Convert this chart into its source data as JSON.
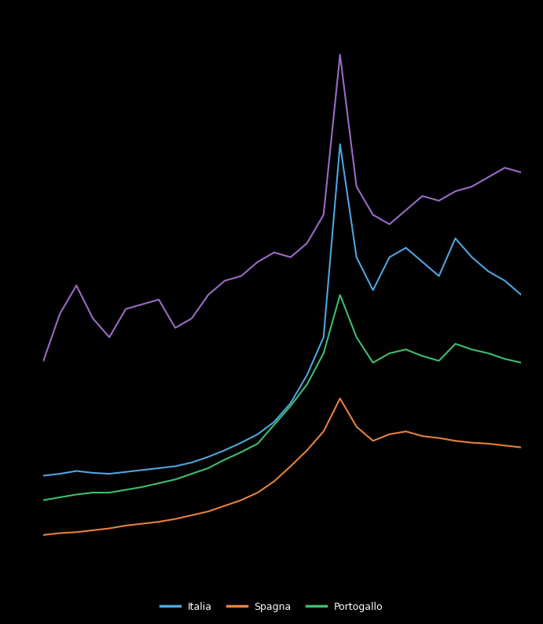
{
  "background_color": "#000000",
  "line_color_purple": "#9B6BC8",
  "line_color_blue": "#4DA6E0",
  "line_color_orange": "#E8813A",
  "line_color_green": "#3DBE6E",
  "purple_data": [
    230,
    280,
    310,
    275,
    255,
    285,
    290,
    295,
    265,
    275,
    300,
    315,
    320,
    335,
    345,
    340,
    355,
    385,
    555,
    415,
    385,
    375,
    390,
    405,
    400,
    410,
    415,
    425,
    435,
    430
  ],
  "blue_data": [
    108,
    110,
    113,
    111,
    110,
    112,
    114,
    116,
    118,
    122,
    128,
    135,
    143,
    152,
    165,
    185,
    215,
    255,
    460,
    340,
    305,
    340,
    350,
    335,
    320,
    360,
    340,
    325,
    315,
    300
  ],
  "green_data": [
    82,
    85,
    88,
    90,
    90,
    93,
    96,
    100,
    104,
    110,
    116,
    125,
    133,
    142,
    162,
    182,
    205,
    238,
    300,
    255,
    228,
    238,
    242,
    235,
    230,
    248,
    242,
    238,
    232,
    228
  ],
  "orange_data": [
    45,
    47,
    48,
    50,
    52,
    55,
    57,
    59,
    62,
    66,
    70,
    76,
    82,
    90,
    102,
    118,
    135,
    155,
    190,
    160,
    145,
    152,
    155,
    150,
    148,
    145,
    143,
    142,
    140,
    138
  ],
  "ylim": [
    30,
    580
  ],
  "figsize": [
    6.91,
    7.93
  ],
  "dpi": 100,
  "legend_labels": [
    "Italia",
    "Spagna",
    "Portogallo"
  ]
}
